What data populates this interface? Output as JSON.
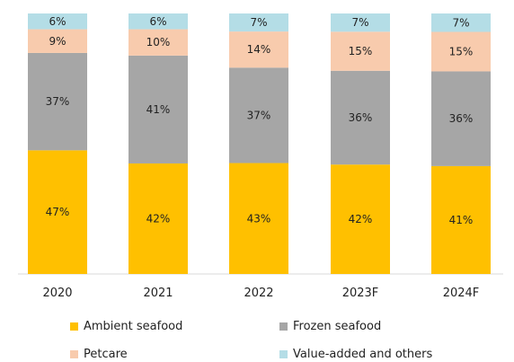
{
  "chart_data": {
    "type": "bar",
    "stacked": true,
    "percent": true,
    "categories": [
      "2020",
      "2021",
      "2022",
      "2023F",
      "2024F"
    ],
    "series": [
      {
        "name": "Ambient seafood",
        "color": "#ffc000",
        "values": [
          47,
          42,
          43,
          42,
          41
        ],
        "labels": [
          "47%",
          "42%",
          "43%",
          "42%",
          "41%"
        ]
      },
      {
        "name": "Frozen seafood",
        "color": "#a6a6a6",
        "values": [
          37,
          41,
          37,
          36,
          36
        ],
        "labels": [
          "37%",
          "41%",
          "37%",
          "36%",
          "36%"
        ]
      },
      {
        "name": "Petcare",
        "color": "#f8cbad",
        "values": [
          9,
          10,
          14,
          15,
          15
        ],
        "labels": [
          "9%",
          "10%",
          "14%",
          "15%",
          "15%"
        ]
      },
      {
        "name": "Value-added and others",
        "color": "#b4dde6",
        "values": [
          6,
          6,
          7,
          7,
          7
        ],
        "labels": [
          "6%",
          "6%",
          "7%",
          "7%",
          "7%"
        ]
      }
    ],
    "ylim": [
      0,
      100
    ],
    "grid": false,
    "legend_position": "bottom"
  }
}
